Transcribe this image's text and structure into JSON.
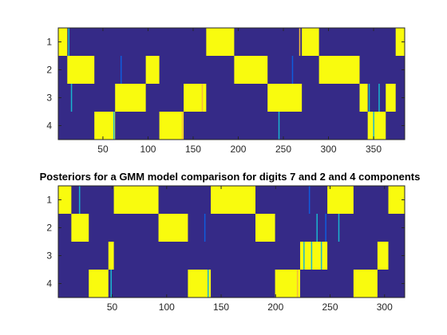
{
  "colors": {
    "background": "#ffffff",
    "low": "#352a87",
    "high": "#f9fb0e",
    "mid": "#0f5cdd",
    "mid_cyan": "#19b5cf",
    "mid_orange": "#f5b93c"
  },
  "chart_data": [
    {
      "type": "heatmap",
      "title": "",
      "xlabel": "",
      "ylabel": "",
      "xlim": [
        0.5,
        384.5
      ],
      "ylim": [
        0.5,
        4.5
      ],
      "x_ticks": [
        50,
        100,
        150,
        200,
        250,
        300,
        350
      ],
      "y_ticks": [
        1,
        2,
        3,
        4
      ],
      "colormap": "parula",
      "dominant_component_segments": [
        {
          "start": 1,
          "end": 10,
          "row": 1
        },
        {
          "start": 11,
          "end": 40,
          "row": 2
        },
        {
          "start": 41,
          "end": 63,
          "row": 4
        },
        {
          "start": 64,
          "end": 97,
          "row": 3
        },
        {
          "start": 98,
          "end": 112,
          "row": 2
        },
        {
          "start": 113,
          "end": 139,
          "row": 4
        },
        {
          "start": 140,
          "end": 164,
          "row": 3
        },
        {
          "start": 165,
          "end": 195,
          "row": 1
        },
        {
          "start": 196,
          "end": 232,
          "row": 2
        },
        {
          "start": 233,
          "end": 270,
          "row": 3
        },
        {
          "start": 271,
          "end": 289,
          "row": 1
        },
        {
          "start": 290,
          "end": 334,
          "row": 2
        },
        {
          "start": 335,
          "end": 343,
          "row": 3
        },
        {
          "start": 344,
          "end": 363,
          "row": 4
        },
        {
          "start": 364,
          "end": 374,
          "row": 3
        },
        {
          "start": 375,
          "end": 384,
          "row": 1
        }
      ],
      "mixed_columns": [
        {
          "x": 12,
          "row": 1,
          "level": "cyan"
        },
        {
          "x": 15,
          "row": 3,
          "level": "cyan"
        },
        {
          "x": 62,
          "row": 4,
          "level": "cyan"
        },
        {
          "x": 70,
          "row": 2,
          "level": "blue"
        },
        {
          "x": 138,
          "row": 4,
          "level": "orange"
        },
        {
          "x": 160,
          "row": 3,
          "level": "orange"
        },
        {
          "x": 245,
          "row": 4,
          "level": "cyan"
        },
        {
          "x": 260,
          "row": 2,
          "level": "blue"
        },
        {
          "x": 268,
          "row": 1,
          "level": "orange"
        },
        {
          "x": 345,
          "row": 3,
          "level": "cyan"
        },
        {
          "x": 350,
          "row": 4,
          "level": "cyan"
        },
        {
          "x": 356,
          "row": 3,
          "level": "cyan"
        }
      ]
    },
    {
      "type": "heatmap",
      "title": "Posteriors for a GMM model comparison for digits 7 and 2 and 4 components",
      "xlabel": "",
      "ylabel": "",
      "xlim": [
        0.5,
        318.5
      ],
      "ylim": [
        0.5,
        4.5
      ],
      "x_ticks": [
        50,
        100,
        150,
        200,
        250,
        300
      ],
      "y_ticks": [
        1,
        2,
        3,
        4
      ],
      "colormap": "parula",
      "dominant_component_segments": [
        {
          "start": 1,
          "end": 12,
          "row": 1
        },
        {
          "start": 13,
          "end": 28,
          "row": 2
        },
        {
          "start": 29,
          "end": 46,
          "row": 4
        },
        {
          "start": 47,
          "end": 51,
          "row": 3
        },
        {
          "start": 52,
          "end": 92,
          "row": 1
        },
        {
          "start": 93,
          "end": 119,
          "row": 2
        },
        {
          "start": 120,
          "end": 140,
          "row": 4
        },
        {
          "start": 141,
          "end": 181,
          "row": 1
        },
        {
          "start": 182,
          "end": 199,
          "row": 2
        },
        {
          "start": 200,
          "end": 222,
          "row": 4
        },
        {
          "start": 223,
          "end": 247,
          "row": 3
        },
        {
          "start": 248,
          "end": 271,
          "row": 1
        },
        {
          "start": 272,
          "end": 293,
          "row": 4
        },
        {
          "start": 294,
          "end": 303,
          "row": 3
        },
        {
          "start": 304,
          "end": 318,
          "row": 1
        }
      ],
      "mixed_columns": [
        {
          "x": 20,
          "row": 1,
          "level": "cyan"
        },
        {
          "x": 49,
          "row": 4,
          "level": "cyan"
        },
        {
          "x": 135,
          "row": 2,
          "level": "blue"
        },
        {
          "x": 138,
          "row": 4,
          "level": "cyan"
        },
        {
          "x": 220,
          "row": 4,
          "level": "orange"
        },
        {
          "x": 226,
          "row": 3,
          "level": "cyan"
        },
        {
          "x": 231,
          "row": 1,
          "level": "blue"
        },
        {
          "x": 233,
          "row": 3,
          "level": "cyan"
        },
        {
          "x": 238,
          "row": 2,
          "level": "cyan"
        },
        {
          "x": 242,
          "row": 3,
          "level": "cyan"
        },
        {
          "x": 246,
          "row": 2,
          "level": "blue"
        },
        {
          "x": 258,
          "row": 2,
          "level": "cyan"
        }
      ]
    }
  ]
}
